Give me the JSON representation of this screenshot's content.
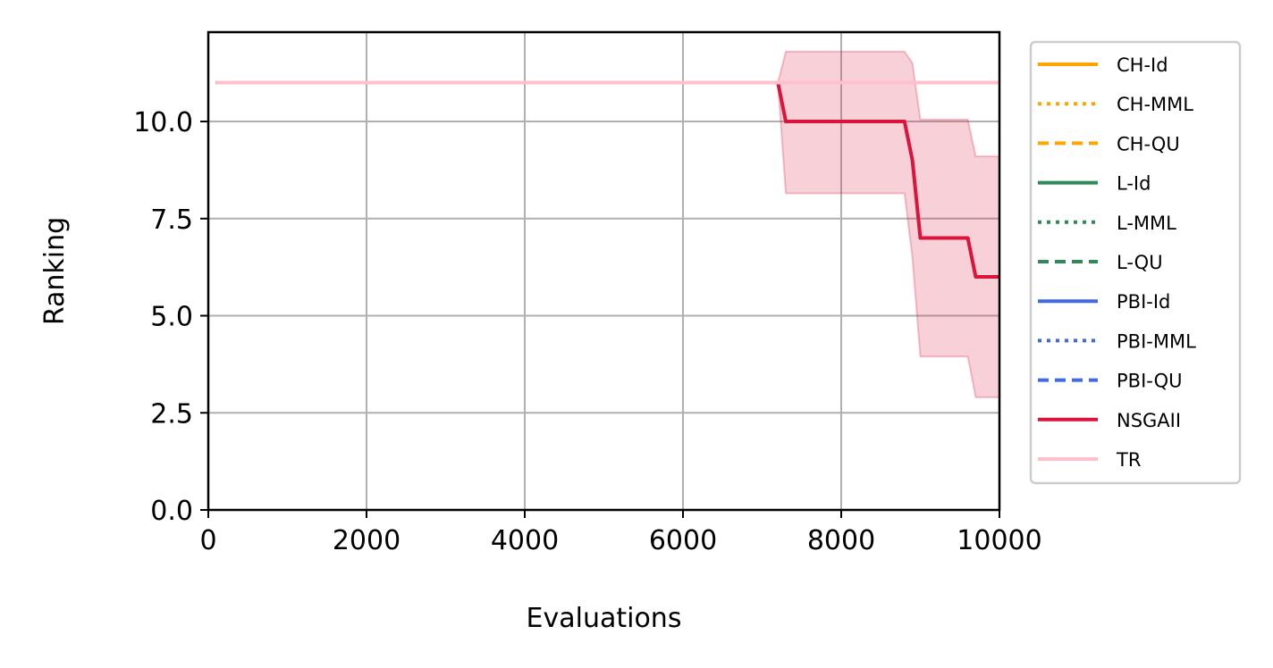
{
  "chart_data": {
    "type": "line",
    "title": "",
    "xlabel": "Evaluations",
    "ylabel": "Ranking",
    "xlim": [
      0,
      10000
    ],
    "ylim": [
      0,
      12.3
    ],
    "xticks": [
      0,
      2000,
      4000,
      6000,
      8000,
      10000
    ],
    "xtick_labels": [
      "0",
      "2000",
      "4000",
      "6000",
      "8000",
      "10000"
    ],
    "yticks": [
      0,
      2.5,
      5,
      7.5,
      10
    ],
    "ytick_labels": [
      "0.0",
      "2.5",
      "5.0",
      "7.5",
      "10.0"
    ],
    "grid": true,
    "legend_position": "outside-right",
    "series": [
      {
        "name": "CH-Id",
        "color": "#FFA500",
        "dash": "solid",
        "x": [
          100,
          10000
        ],
        "y": [
          11,
          11
        ]
      },
      {
        "name": "CH-MML",
        "color": "#FFA500",
        "dash": "dotted",
        "x": [
          100,
          10000
        ],
        "y": [
          11,
          11
        ]
      },
      {
        "name": "CH-QU",
        "color": "#FFA500",
        "dash": "dashed",
        "x": [
          100,
          10000
        ],
        "y": [
          11,
          11
        ]
      },
      {
        "name": "L-Id",
        "color": "#2E8B57",
        "dash": "solid",
        "x": [
          100,
          10000
        ],
        "y": [
          11,
          11
        ]
      },
      {
        "name": "L-MML",
        "color": "#2E8B57",
        "dash": "dotted",
        "x": [
          100,
          10000
        ],
        "y": [
          11,
          11
        ]
      },
      {
        "name": "L-QU",
        "color": "#2E8B57",
        "dash": "dashed",
        "x": [
          100,
          10000
        ],
        "y": [
          11,
          11
        ]
      },
      {
        "name": "PBI-Id",
        "color": "#4169E1",
        "dash": "solid",
        "x": [
          100,
          10000
        ],
        "y": [
          11,
          11
        ]
      },
      {
        "name": "PBI-MML",
        "color": "#4169E1",
        "dash": "dotted",
        "x": [
          100,
          10000
        ],
        "y": [
          11,
          11
        ]
      },
      {
        "name": "PBI-QU",
        "color": "#4169E1",
        "dash": "dashed",
        "x": [
          100,
          10000
        ],
        "y": [
          11,
          11
        ]
      },
      {
        "name": "NSGAII",
        "color": "#DC143C",
        "dash": "solid",
        "x": [
          100,
          7200,
          7300,
          8800,
          8900,
          9000,
          9600,
          9700,
          10000
        ],
        "y": [
          11,
          11,
          10,
          10,
          9,
          7,
          7,
          6,
          6
        ],
        "band": {
          "x": [
            100,
            7200,
            7300,
            8800,
            8900,
            9000,
            9600,
            9700,
            10000
          ],
          "lower": [
            11,
            11,
            8.15,
            8.15,
            6.5,
            3.95,
            3.95,
            2.9,
            2.9
          ],
          "upper": [
            11,
            11,
            11.8,
            11.8,
            11.5,
            10.05,
            10.05,
            9.1,
            9.1
          ]
        }
      },
      {
        "name": "TR",
        "color": "#FFC0CB",
        "dash": "solid",
        "x": [
          100,
          10000
        ],
        "y": [
          11,
          11
        ]
      }
    ]
  }
}
